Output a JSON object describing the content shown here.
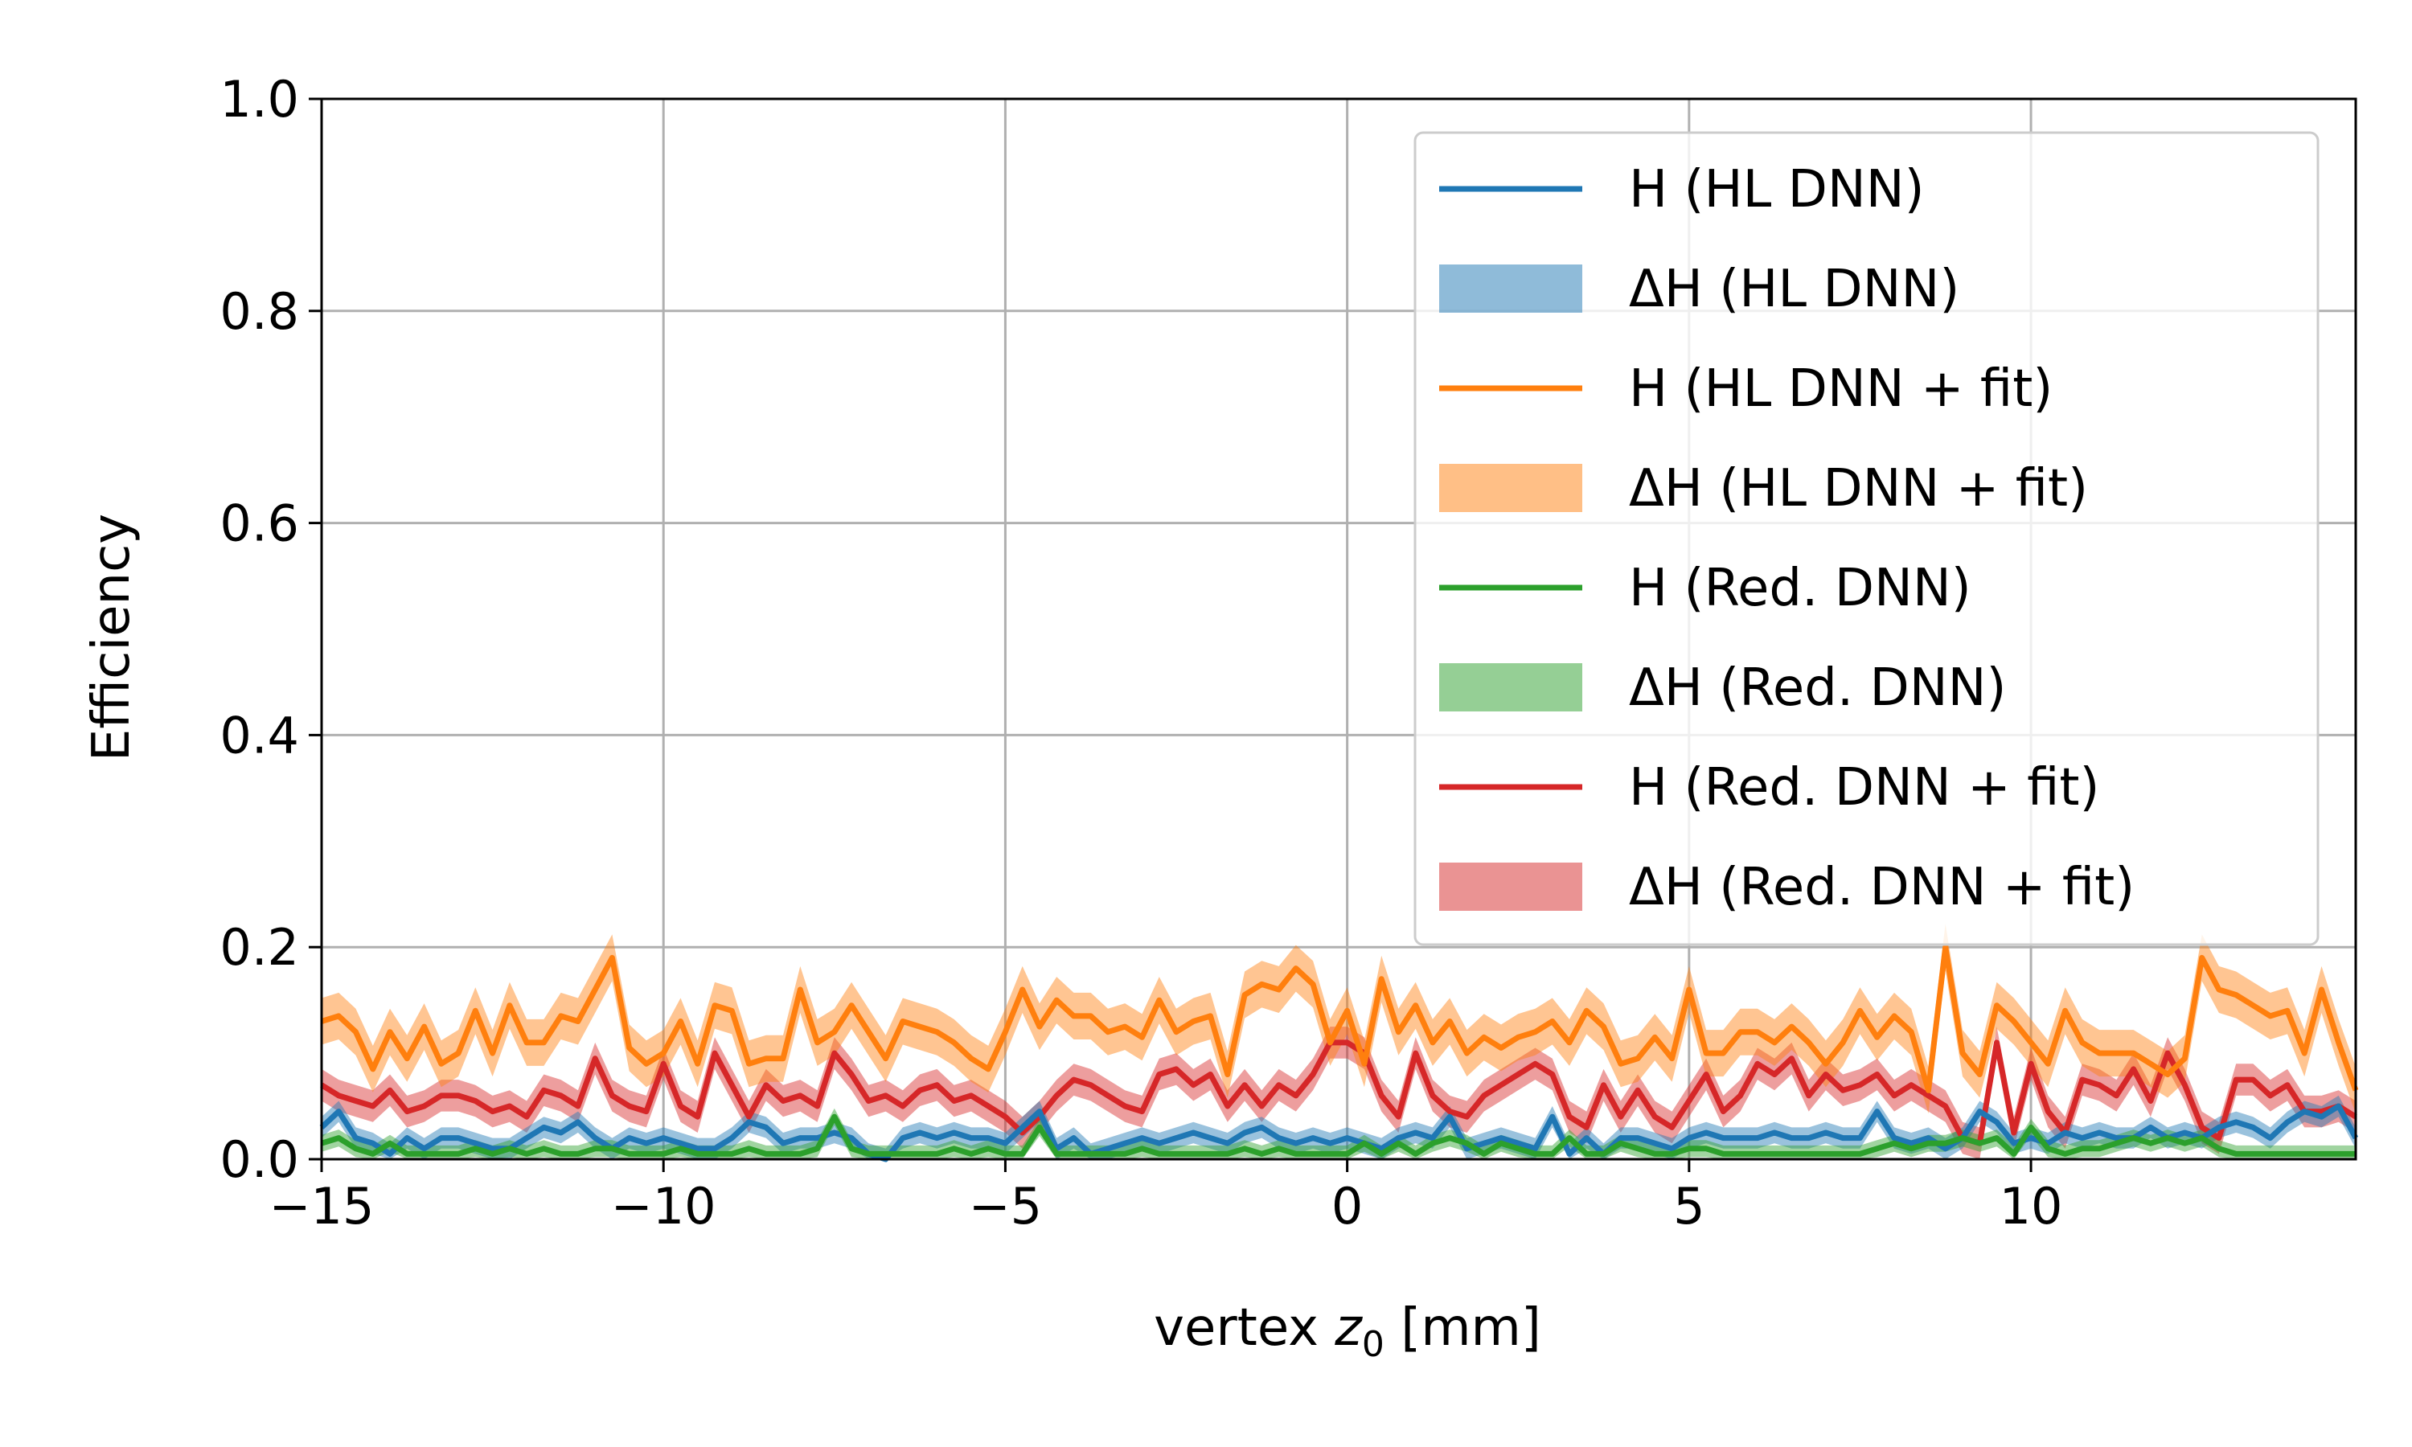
{
  "chart_data": {
    "type": "line",
    "title": "",
    "xlabel": "vertex ",
    "xlabel_var": "z",
    "xlabel_sub": "0",
    "xlabel_unit": " [mm]",
    "ylabel": "Efficiency",
    "xlim": [
      -15,
      14.75
    ],
    "ylim": [
      0.0,
      1.0
    ],
    "grid": true,
    "legend_position": "upper right",
    "xticks": [
      -15,
      -10,
      -5,
      0,
      5,
      10
    ],
    "xtick_labels": [
      "−15",
      "−10",
      "−5",
      "0",
      "5",
      "10"
    ],
    "yticks": [
      0.0,
      0.2,
      0.4,
      0.6,
      0.8,
      1.0
    ],
    "ytick_labels": [
      "0.0",
      "0.2",
      "0.4",
      "0.6",
      "0.8",
      "1.0"
    ],
    "legend": [
      {
        "label": "H (HL DNN)",
        "kind": "line",
        "color": "#1f77b4"
      },
      {
        "label": "ΔH (HL DNN)",
        "kind": "band",
        "color": "#1f77b4"
      },
      {
        "label": "H (HL DNN + fit)",
        "kind": "line",
        "color": "#ff7f0e"
      },
      {
        "label": "ΔH (HL DNN + fit)",
        "kind": "band",
        "color": "#ff7f0e"
      },
      {
        "label": "H (Red. DNN)",
        "kind": "line",
        "color": "#2ca02c"
      },
      {
        "label": "ΔH (Red. DNN)",
        "kind": "band",
        "color": "#2ca02c"
      },
      {
        "label": "H (Red. DNN + fit)",
        "kind": "line",
        "color": "#d62728"
      },
      {
        "label": "ΔH (Red. DNN + fit)",
        "kind": "band",
        "color": "#d62728"
      }
    ],
    "x": [
      -15.0,
      -14.75,
      -14.5,
      -14.25,
      -14.0,
      -13.75,
      -13.5,
      -13.25,
      -13.0,
      -12.75,
      -12.5,
      -12.25,
      -12.0,
      -11.75,
      -11.5,
      -11.25,
      -11.0,
      -10.75,
      -10.5,
      -10.25,
      -10.0,
      -9.75,
      -9.5,
      -9.25,
      -9.0,
      -8.75,
      -8.5,
      -8.25,
      -8.0,
      -7.75,
      -7.5,
      -7.25,
      -7.0,
      -6.75,
      -6.5,
      -6.25,
      -6.0,
      -5.75,
      -5.5,
      -5.25,
      -5.0,
      -4.75,
      -4.5,
      -4.25,
      -4.0,
      -3.75,
      -3.5,
      -3.25,
      -3.0,
      -2.75,
      -2.5,
      -2.25,
      -2.0,
      -1.75,
      -1.5,
      -1.25,
      -1.0,
      -0.75,
      -0.5,
      -0.25,
      0.0,
      0.25,
      0.5,
      0.75,
      1.0,
      1.25,
      1.5,
      1.75,
      2.0,
      2.25,
      2.5,
      2.75,
      3.0,
      3.25,
      3.5,
      3.75,
      4.0,
      4.25,
      4.5,
      4.75,
      5.0,
      5.25,
      5.5,
      5.75,
      6.0,
      6.25,
      6.5,
      6.75,
      7.0,
      7.25,
      7.5,
      7.75,
      8.0,
      8.25,
      8.5,
      8.75,
      9.0,
      9.25,
      9.5,
      9.75,
      10.0,
      10.25,
      10.5,
      10.75,
      11.0,
      11.25,
      11.5,
      11.75,
      12.0,
      12.25,
      12.5,
      12.75,
      13.0,
      13.25,
      13.5,
      13.75,
      14.0,
      14.25,
      14.5,
      14.75
    ],
    "series": [
      {
        "name": "H (Red. DNN + fit)",
        "color": "#d62728",
        "band_halfwidth": 0.015,
        "values": [
          0.07,
          0.06,
          0.055,
          0.05,
          0.065,
          0.045,
          0.05,
          0.06,
          0.06,
          0.055,
          0.045,
          0.05,
          0.04,
          0.065,
          0.06,
          0.05,
          0.095,
          0.06,
          0.05,
          0.045,
          0.09,
          0.05,
          0.04,
          0.1,
          0.07,
          0.04,
          0.07,
          0.055,
          0.06,
          0.05,
          0.1,
          0.08,
          0.055,
          0.06,
          0.05,
          0.065,
          0.07,
          0.055,
          0.06,
          0.05,
          0.04,
          0.025,
          0.04,
          0.06,
          0.075,
          0.07,
          0.06,
          0.05,
          0.045,
          0.08,
          0.085,
          0.07,
          0.08,
          0.05,
          0.07,
          0.05,
          0.07,
          0.06,
          0.08,
          0.11,
          0.11,
          0.1,
          0.06,
          0.04,
          0.1,
          0.06,
          0.045,
          0.04,
          0.06,
          0.07,
          0.08,
          0.09,
          0.08,
          0.04,
          0.03,
          0.07,
          0.04,
          0.065,
          0.04,
          0.03,
          0.055,
          0.08,
          0.045,
          0.06,
          0.09,
          0.08,
          0.095,
          0.06,
          0.08,
          0.065,
          0.07,
          0.08,
          0.06,
          0.07,
          0.06,
          0.05,
          0.02,
          0.015,
          0.11,
          0.025,
          0.09,
          0.045,
          0.025,
          0.075,
          0.07,
          0.06,
          0.085,
          0.055,
          0.1,
          0.07,
          0.03,
          0.02,
          0.075,
          0.075,
          0.06,
          0.07,
          0.045,
          0.045,
          0.05,
          0.04
        ]
      },
      {
        "name": "H (HL DNN + fit)",
        "color": "#ff7f0e",
        "band_halfwidth": 0.022,
        "values": [
          0.13,
          0.135,
          0.12,
          0.085,
          0.12,
          0.095,
          0.125,
          0.09,
          0.1,
          0.14,
          0.1,
          0.145,
          0.11,
          0.11,
          0.135,
          0.13,
          0.16,
          0.19,
          0.105,
          0.09,
          0.1,
          0.13,
          0.09,
          0.145,
          0.14,
          0.09,
          0.095,
          0.095,
          0.16,
          0.11,
          0.12,
          0.145,
          0.12,
          0.095,
          0.13,
          0.125,
          0.12,
          0.11,
          0.095,
          0.085,
          0.12,
          0.16,
          0.125,
          0.15,
          0.135,
          0.135,
          0.12,
          0.125,
          0.115,
          0.15,
          0.12,
          0.13,
          0.135,
          0.08,
          0.155,
          0.165,
          0.16,
          0.18,
          0.165,
          0.11,
          0.14,
          0.09,
          0.17,
          0.12,
          0.145,
          0.11,
          0.13,
          0.1,
          0.115,
          0.105,
          0.115,
          0.12,
          0.13,
          0.11,
          0.14,
          0.125,
          0.09,
          0.095,
          0.115,
          0.095,
          0.16,
          0.1,
          0.1,
          0.12,
          0.12,
          0.11,
          0.125,
          0.11,
          0.09,
          0.11,
          0.14,
          0.115,
          0.135,
          0.12,
          0.065,
          0.2,
          0.1,
          0.08,
          0.145,
          0.13,
          0.11,
          0.09,
          0.14,
          0.11,
          0.1,
          0.1,
          0.1,
          0.09,
          0.08,
          0.095,
          0.19,
          0.16,
          0.155,
          0.145,
          0.135,
          0.14,
          0.1,
          0.16,
          0.11,
          0.065
        ]
      },
      {
        "name": "H (HL DNN)",
        "color": "#1f77b4",
        "band_halfwidth": 0.01,
        "values": [
          0.03,
          0.045,
          0.02,
          0.015,
          0.005,
          0.02,
          0.01,
          0.02,
          0.02,
          0.015,
          0.01,
          0.01,
          0.02,
          0.03,
          0.025,
          0.035,
          0.02,
          0.01,
          0.02,
          0.015,
          0.02,
          0.015,
          0.01,
          0.01,
          0.02,
          0.035,
          0.03,
          0.015,
          0.02,
          0.02,
          0.025,
          0.02,
          0.005,
          0.0,
          0.02,
          0.025,
          0.02,
          0.025,
          0.02,
          0.02,
          0.015,
          0.03,
          0.045,
          0.01,
          0.02,
          0.005,
          0.01,
          0.015,
          0.02,
          0.015,
          0.02,
          0.025,
          0.02,
          0.015,
          0.025,
          0.03,
          0.02,
          0.015,
          0.02,
          0.015,
          0.02,
          0.015,
          0.01,
          0.02,
          0.025,
          0.02,
          0.04,
          0.01,
          0.015,
          0.02,
          0.015,
          0.01,
          0.04,
          0.005,
          0.02,
          0.005,
          0.02,
          0.02,
          0.015,
          0.01,
          0.02,
          0.025,
          0.02,
          0.02,
          0.02,
          0.025,
          0.02,
          0.02,
          0.025,
          0.02,
          0.02,
          0.045,
          0.02,
          0.015,
          0.02,
          0.01,
          0.02,
          0.045,
          0.035,
          0.015,
          0.02,
          0.015,
          0.025,
          0.02,
          0.025,
          0.02,
          0.02,
          0.03,
          0.02,
          0.025,
          0.02,
          0.03,
          0.035,
          0.03,
          0.02,
          0.035,
          0.045,
          0.04,
          0.05,
          0.02
        ]
      },
      {
        "name": "H (Red. DNN)",
        "color": "#2ca02c",
        "band_halfwidth": 0.008,
        "values": [
          0.015,
          0.02,
          0.01,
          0.005,
          0.015,
          0.005,
          0.005,
          0.005,
          0.005,
          0.01,
          0.005,
          0.01,
          0.005,
          0.01,
          0.005,
          0.005,
          0.01,
          0.01,
          0.005,
          0.005,
          0.005,
          0.01,
          0.005,
          0.005,
          0.005,
          0.01,
          0.005,
          0.005,
          0.005,
          0.01,
          0.04,
          0.01,
          0.005,
          0.005,
          0.005,
          0.005,
          0.005,
          0.01,
          0.005,
          0.01,
          0.005,
          0.005,
          0.03,
          0.005,
          0.005,
          0.005,
          0.005,
          0.005,
          0.01,
          0.005,
          0.005,
          0.005,
          0.005,
          0.005,
          0.01,
          0.005,
          0.01,
          0.005,
          0.005,
          0.005,
          0.005,
          0.015,
          0.005,
          0.015,
          0.005,
          0.015,
          0.02,
          0.015,
          0.005,
          0.015,
          0.01,
          0.005,
          0.005,
          0.02,
          0.005,
          0.005,
          0.015,
          0.01,
          0.005,
          0.005,
          0.01,
          0.01,
          0.005,
          0.005,
          0.005,
          0.005,
          0.005,
          0.005,
          0.005,
          0.005,
          0.005,
          0.01,
          0.015,
          0.01,
          0.015,
          0.015,
          0.02,
          0.015,
          0.02,
          0.005,
          0.03,
          0.01,
          0.005,
          0.01,
          0.01,
          0.015,
          0.02,
          0.015,
          0.02,
          0.015,
          0.02,
          0.01,
          0.005,
          0.005,
          0.005,
          0.005,
          0.005,
          0.005,
          0.005,
          0.005
        ]
      }
    ]
  }
}
